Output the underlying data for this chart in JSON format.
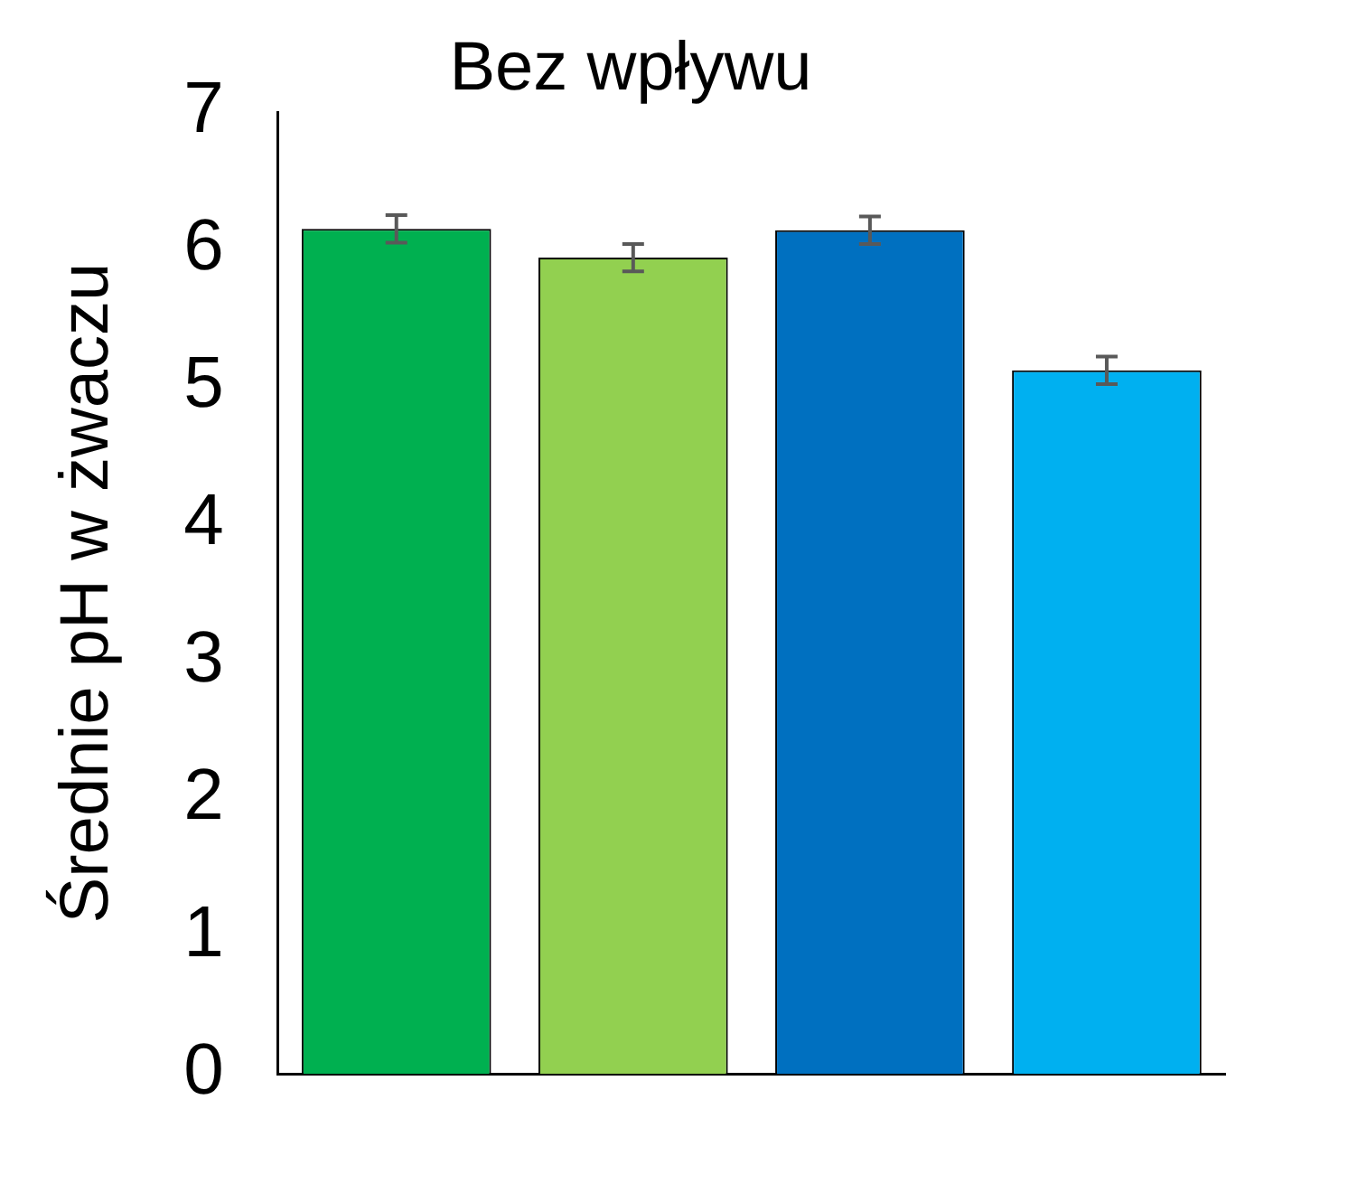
{
  "chart_data": {
    "type": "bar",
    "title": "Bez wpływu",
    "ylabel": "Średnie pH w żwaczu",
    "categories": [
      null,
      null,
      null,
      null
    ],
    "values": [
      6.15,
      5.94,
      6.14,
      5.12
    ],
    "colors": [
      "#00b050",
      "#92d050",
      "#0070c0",
      "#00b0f0"
    ],
    "errors": [
      0.1,
      0.1,
      0.1,
      0.1
    ],
    "ylim": [
      0,
      7
    ],
    "yticks": [
      0,
      1,
      2,
      3,
      4,
      5,
      6,
      7
    ],
    "grid": false,
    "legend": false
  }
}
